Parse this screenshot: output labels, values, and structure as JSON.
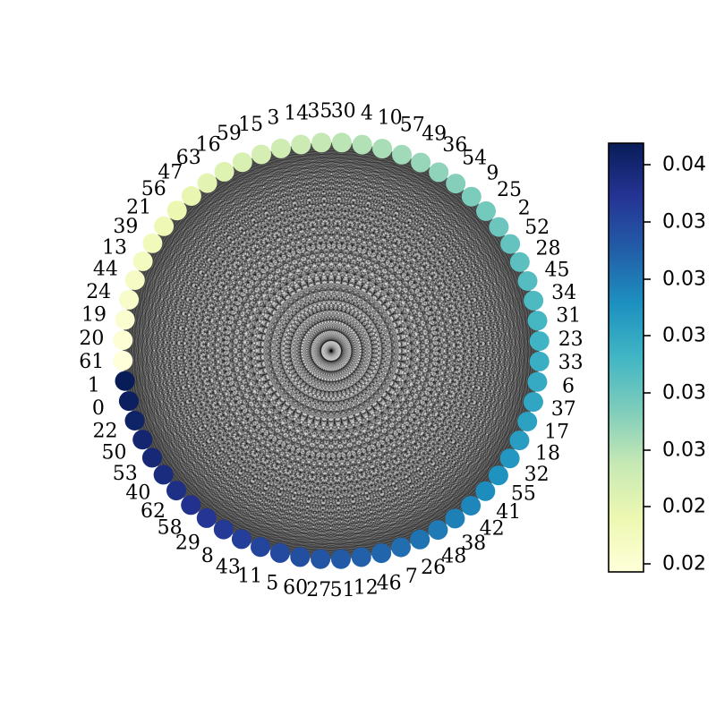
{
  "diagram": {
    "type": "circular-network",
    "edge_color": "#000000",
    "node_order_clockwise_from_left": [
      "61",
      "20",
      "19",
      "24",
      "44",
      "13",
      "39",
      "21",
      "56",
      "47",
      "63",
      "16",
      "59",
      "15",
      "3",
      "14",
      "35",
      "30",
      "4",
      "10",
      "57",
      "49",
      "36",
      "54",
      "9",
      "25",
      "2",
      "52",
      "28",
      "45",
      "34",
      "31",
      "23",
      "33",
      "6",
      "37",
      "17",
      "18",
      "32",
      "55",
      "41",
      "42",
      "38",
      "48",
      "26",
      "7",
      "46",
      "12",
      "51",
      "27",
      "60",
      "5",
      "11",
      "43",
      "8",
      "29",
      "58",
      "62",
      "40",
      "53",
      "50",
      "22",
      "0",
      "1"
    ]
  },
  "colorbar": {
    "colormap": "YlGnBu",
    "tick_labels": [
      "0.04",
      "0.03",
      "0.03",
      "0.03",
      "0.03",
      "0.03",
      "0.02",
      "0.02"
    ],
    "gradient_colors": [
      "#ffffd9",
      "#edf8b1",
      "#c7e9b4",
      "#7fcdbb",
      "#41b6c4",
      "#1d91c0",
      "#225ea8",
      "#253494",
      "#081d58"
    ]
  }
}
